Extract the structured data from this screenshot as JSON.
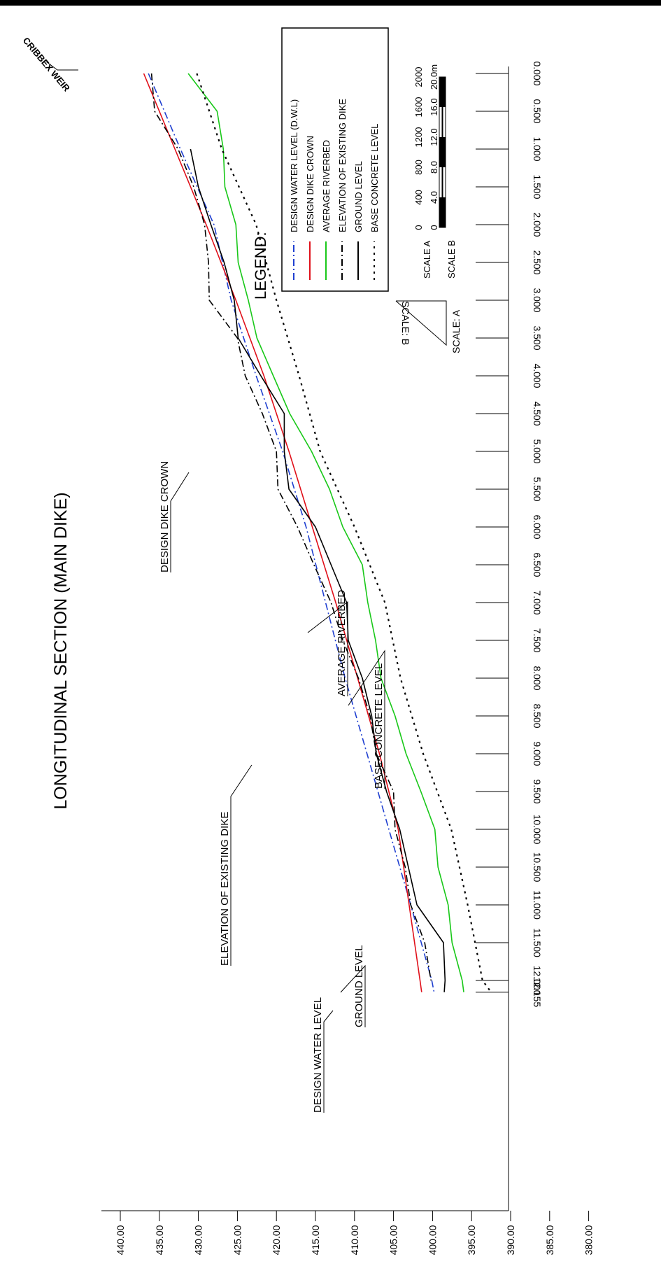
{
  "title": "LONGITUDINAL SECTION (MAIN DIKE)",
  "weir_label": "CRIBBEX WEIR",
  "legend": {
    "heading": "LEGEND:",
    "items": [
      {
        "label": "DESIGN WATER LEVEL (D.W.L)",
        "color": "#1f3fd0",
        "style": "dashdot"
      },
      {
        "label": "DESIGN DIKE CROWN",
        "color": "#e0101a",
        "style": "solid"
      },
      {
        "label": "AVERAGE RIVERBED",
        "color": "#19c819",
        "style": "solid"
      },
      {
        "label": "ELEVATION OF EXISTING DIKE",
        "color": "#000000",
        "style": "dashdot"
      },
      {
        "label": "GROUND LEVEL",
        "color": "#000000",
        "style": "solid"
      },
      {
        "label": "BASE CONCRETE LEVEL",
        "color": "#000000",
        "style": "dotted"
      }
    ]
  },
  "scale_bar": {
    "scale_a_label": "SCALE A",
    "scale_b_label": "SCALE B",
    "scale_a_ticks": [
      "0",
      "400",
      "800",
      "1200",
      "1600",
      "2000"
    ],
    "scale_b_ticks": [
      "0",
      "4.0",
      "8.0",
      "12.0",
      "16.0",
      "20.0m"
    ]
  },
  "scale_triangle": {
    "label_a": "SCALE: A",
    "label_b": "SCALE: B"
  },
  "annotations": [
    {
      "key": "ddc",
      "text": "DESIGN DIKE CROWN"
    },
    {
      "key": "ar",
      "text": "AVERAGE RIVERBED"
    },
    {
      "key": "bcl",
      "text": "BASE CONCRETE LEVEL"
    },
    {
      "key": "eed",
      "text": "ELEVATION OF EXISTING DIKE"
    },
    {
      "key": "gl",
      "text": "GROUND LEVEL"
    },
    {
      "key": "dwl",
      "text": "DESIGN WATER LEVEL"
    }
  ],
  "chart_data": {
    "type": "line",
    "x_label": "",
    "y_label": "",
    "stations": [
      "0.000",
      "0.500",
      "1.000",
      "1.500",
      "2.000",
      "2.500",
      "3.000",
      "3.500",
      "4.000",
      "4.500",
      "5.000",
      "5.500",
      "6.000",
      "6.500",
      "7.000",
      "7.500",
      "8.000",
      "8.500",
      "9.000",
      "9.500",
      "10.000",
      "10.500",
      "11.000",
      "11.500",
      "12.000",
      "12.155"
    ],
    "elevations": [
      "440.00",
      "435.00",
      "430.00",
      "425.00",
      "420.00",
      "415.00",
      "410.00",
      "405.00",
      "400.00",
      "395.00",
      "390.00",
      "385.00",
      "380.00"
    ],
    "xlim": [
      0,
      12.155
    ],
    "ylim": [
      380,
      440
    ],
    "series": [
      {
        "name": "DESIGN WATER LEVEL (D.W.L)",
        "color": "#1f3fd0",
        "style": "dashdot",
        "x": [
          0.0,
          1.0,
          2.0,
          3.0,
          4.0,
          5.0,
          6.0,
          7.0,
          8.0,
          9.0,
          10.0,
          11.0,
          12.0,
          12.155
        ],
        "y": [
          436.4,
          432.3,
          428.0,
          425.8,
          422.6,
          419.2,
          416.2,
          413.7,
          411.2,
          408.4,
          405.6,
          402.8,
          400.1,
          399.8
        ]
      },
      {
        "name": "DESIGN DIKE CROWN",
        "color": "#e0101a",
        "style": "solid",
        "x": [
          0.0,
          1.0,
          2.0,
          3.0,
          4.0,
          5.0,
          6.0,
          7.0,
          8.0,
          9.0,
          10.0,
          11.0,
          12.0,
          12.155
        ],
        "y": [
          437.0,
          433.0,
          429.0,
          425.2,
          421.6,
          418.4,
          415.4,
          412.4,
          409.6,
          406.8,
          404.4,
          403.0,
          401.6,
          401.4
        ]
      },
      {
        "name": "AVERAGE RIVERBED",
        "color": "#19c819",
        "style": "solid",
        "x": [
          0.0,
          0.5,
          1.0,
          1.5,
          2.0,
          2.5,
          3.0,
          3.5,
          4.0,
          4.5,
          5.0,
          5.5,
          6.0,
          6.5,
          7.0,
          7.5,
          8.0,
          8.5,
          9.0,
          9.5,
          10.0,
          10.5,
          11.0,
          11.5,
          12.0,
          12.155
        ],
        "y": [
          431.3,
          427.6,
          426.8,
          426.6,
          425.2,
          424.9,
          423.6,
          422.5,
          420.4,
          418.3,
          415.5,
          413.2,
          411.5,
          409.0,
          408.3,
          407.3,
          406.6,
          404.8,
          403.4,
          401.5,
          399.7,
          399.3,
          398.0,
          397.5,
          396.2,
          396.0
        ]
      },
      {
        "name": "ELEVATION OF EXISTING DIKE",
        "color": "#000000",
        "style": "dashdot",
        "x": [
          0.0,
          0.5,
          1.0,
          1.5,
          2.0,
          2.5,
          3.0,
          3.5,
          4.0,
          4.5,
          5.0,
          5.5,
          6.0,
          6.5,
          7.0,
          7.5,
          8.0,
          8.5,
          9.0,
          9.5,
          10.0,
          10.5,
          11.0,
          11.5,
          12.0
        ],
        "y": [
          436.0,
          435.6,
          432.6,
          430.6,
          429.2,
          428.7,
          428.6,
          425.0,
          424.0,
          421.8,
          420.0,
          419.8,
          417.3,
          415.2,
          413.0,
          411.5,
          409.5,
          408.0,
          407.2,
          405.0,
          404.8,
          403.5,
          402.8,
          401.0,
          400.2
        ]
      },
      {
        "name": "GROUND LEVEL",
        "color": "#000000",
        "style": "solid",
        "x": [
          1.0,
          1.5,
          2.0,
          2.5,
          3.0,
          3.5,
          4.0,
          4.5,
          5.0,
          5.5,
          6.0,
          6.5,
          7.0,
          7.5,
          8.0,
          8.5,
          9.0,
          9.5,
          10.0,
          10.5,
          11.0,
          11.5,
          12.0,
          12.155
        ],
        "y": [
          431.0,
          430.0,
          428.4,
          426.7,
          425.4,
          424.9,
          422.0,
          419.0,
          419.0,
          418.4,
          415.0,
          413.0,
          411.0,
          410.8,
          409.0,
          407.8,
          407.2,
          405.9,
          404.2,
          403.1,
          402.0,
          398.6,
          398.4,
          398.5
        ]
      },
      {
        "name": "BASE CONCRETE LEVEL",
        "color": "#000000",
        "style": "dotted",
        "x": [
          0.0,
          1.0,
          2.0,
          3.0,
          4.0,
          5.0,
          6.0,
          7.0,
          8.0,
          9.0,
          10.0,
          11.0,
          12.0,
          12.155
        ],
        "y": [
          430.2,
          427.0,
          422.6,
          420.0,
          417.1,
          414.4,
          410.0,
          406.1,
          404.1,
          401.2,
          397.6,
          395.5,
          393.6,
          392.5
        ]
      }
    ]
  }
}
